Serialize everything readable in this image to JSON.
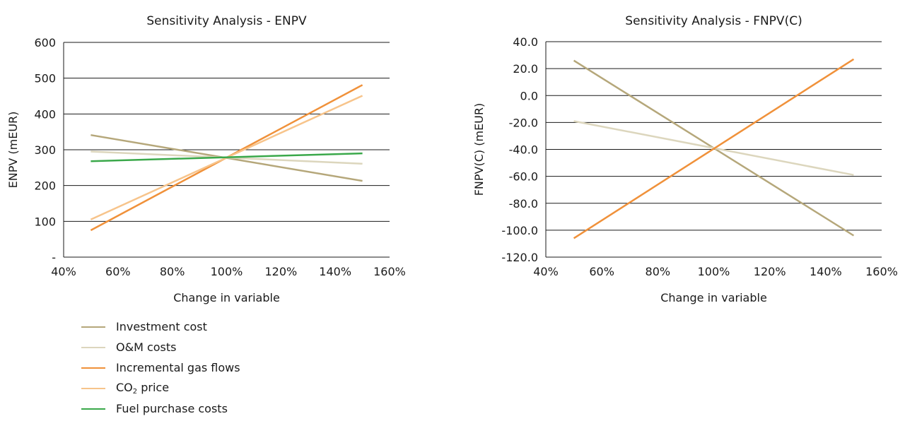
{
  "chart_data": [
    {
      "type": "line",
      "title": "Sensitivity Analysis - ENPV",
      "xlabel": "Change in variable",
      "ylabel": "ENPV (mEUR)",
      "x_ticks": [
        "40%",
        "60%",
        "80%",
        "100%",
        "120%",
        "140%",
        "160%"
      ],
      "y_ticks": [
        "-",
        "100",
        "200",
        "300",
        "400",
        "500",
        "600"
      ],
      "xlim": [
        40,
        160
      ],
      "ylim": [
        0,
        600
      ],
      "grid": "horizontal",
      "series": [
        {
          "name": "Investment cost",
          "color": "#b5a77a",
          "x": [
            50,
            150
          ],
          "y": [
            341,
            213
          ]
        },
        {
          "name": "O&M costs",
          "color": "#dcd6bd",
          "x": [
            50,
            150
          ],
          "y": [
            295,
            261
          ]
        },
        {
          "name": "Incremental gas flows",
          "color": "#f0913a",
          "x": [
            50,
            150
          ],
          "y": [
            75,
            481
          ]
        },
        {
          "name": "CO2 price",
          "color": "#f7c48b",
          "x": [
            50,
            150
          ],
          "y": [
            105,
            451
          ]
        },
        {
          "name": "Fuel purchase costs",
          "color": "#3aa84a",
          "x": [
            50,
            150
          ],
          "y": [
            268,
            290
          ]
        }
      ]
    },
    {
      "type": "line",
      "title": "Sensitivity Analysis - FNPV(C)",
      "xlabel": "Change in variable",
      "ylabel": "FNPV(C) (mEUR)",
      "x_ticks": [
        "40%",
        "60%",
        "80%",
        "100%",
        "120%",
        "140%",
        "160%"
      ],
      "y_ticks": [
        "-120.0",
        "-100.0",
        "-80.0",
        "-60.0",
        "-40.0",
        "-20.0",
        "0.0",
        "20.0",
        "40.0"
      ],
      "xlim": [
        40,
        160
      ],
      "ylim": [
        -120,
        40
      ],
      "grid": "horizontal",
      "series": [
        {
          "name": "Investment cost",
          "color": "#b5a77a",
          "x": [
            50,
            150
          ],
          "y": [
            26,
            -104
          ]
        },
        {
          "name": "O&M costs",
          "color": "#dcd6bd",
          "x": [
            50,
            150
          ],
          "y": [
            -19,
            -59
          ]
        },
        {
          "name": "Incremental gas flows",
          "color": "#f0913a",
          "x": [
            50,
            150
          ],
          "y": [
            -106,
            27
          ]
        }
      ]
    }
  ],
  "legend": [
    {
      "label": "Investment cost",
      "color": "#b5a77a"
    },
    {
      "label": "O&M costs",
      "color": "#dcd6bd"
    },
    {
      "label": "Incremental gas flows",
      "color": "#f0913a"
    },
    {
      "label": "CO",
      "sub": "2",
      "suffix": " price",
      "color": "#f7c48b"
    },
    {
      "label": "Fuel purchase costs",
      "color": "#3aa84a"
    }
  ]
}
